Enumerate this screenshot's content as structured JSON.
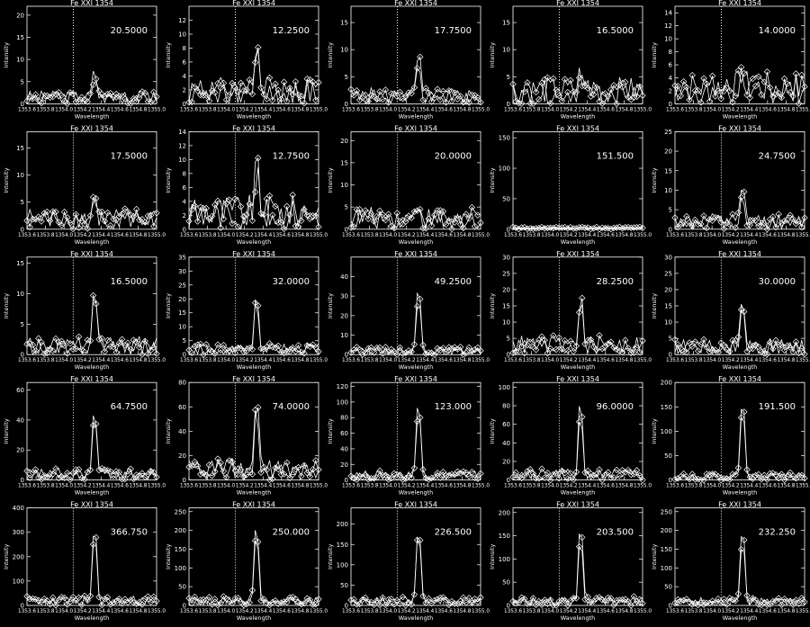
{
  "chart_data": {
    "type": "line",
    "layout": "grid 5x5",
    "panel_title": "Fe XXI 1354",
    "xlabel": "Wavelength",
    "ylabel": "Intensity",
    "xlim": [
      1353.6,
      1355.0
    ],
    "x_tick_labels": [
      "1353.6",
      "1353.8",
      "1354.0",
      "1354.2",
      "1354.4",
      "1354.6",
      "1354.8",
      "1355.0"
    ],
    "reference_line_x": 1354.1,
    "grid": false,
    "panels": [
      {
        "value_label": "20.5000",
        "ylim": [
          0,
          22
        ],
        "yticks": [
          0,
          5,
          10,
          15,
          20
        ],
        "peak": 8,
        "noise": 3
      },
      {
        "value_label": "12.2500",
        "ylim": [
          0,
          14
        ],
        "yticks": [
          0,
          2,
          4,
          6,
          8,
          10,
          12
        ],
        "peak": 10,
        "noise": 4
      },
      {
        "value_label": "17.7500",
        "ylim": [
          0,
          18
        ],
        "yticks": [
          0,
          5,
          10,
          15
        ],
        "peak": 10,
        "noise": 3
      },
      {
        "value_label": "16.5000",
        "ylim": [
          0,
          18
        ],
        "yticks": [
          0,
          5,
          10,
          15
        ],
        "peak": 6,
        "noise": 5
      },
      {
        "value_label": "14.0000",
        "ylim": [
          0,
          15
        ],
        "yticks": [
          0,
          2,
          4,
          6,
          8,
          10,
          12,
          14
        ],
        "peak": 6,
        "noise": 5
      },
      {
        "value_label": "17.5000",
        "ylim": [
          0,
          18
        ],
        "yticks": [
          0,
          5,
          10,
          15
        ],
        "peak": 6,
        "noise": 4
      },
      {
        "value_label": "12.7500",
        "ylim": [
          0,
          14
        ],
        "yticks": [
          0,
          2,
          4,
          6,
          8,
          10,
          12,
          14
        ],
        "peak": 10,
        "noise": 5
      },
      {
        "value_label": "20.0000",
        "ylim": [
          0,
          22
        ],
        "yticks": [
          0,
          5,
          10,
          15,
          20
        ],
        "peak": 7,
        "noise": 5
      },
      {
        "value_label": "151.500",
        "ylim": [
          0,
          160
        ],
        "yticks": [
          0,
          50,
          100,
          150
        ],
        "peak": 4,
        "noise": 4
      },
      {
        "value_label": "24.7500",
        "ylim": [
          0,
          25
        ],
        "yticks": [
          0,
          5,
          10,
          15,
          20,
          25
        ],
        "peak": 11,
        "noise": 4
      },
      {
        "value_label": "16.5000",
        "ylim": [
          0,
          16
        ],
        "yticks": [
          0,
          5,
          10,
          15
        ],
        "peak": 13,
        "noise": 3
      },
      {
        "value_label": "32.0000",
        "ylim": [
          0,
          35
        ],
        "yticks": [
          0,
          5,
          10,
          15,
          20,
          25,
          30,
          35
        ],
        "peak": 25,
        "noise": 4
      },
      {
        "value_label": "49.2500",
        "ylim": [
          0,
          50
        ],
        "yticks": [
          0,
          10,
          20,
          30,
          40
        ],
        "peak": 39,
        "noise": 4
      },
      {
        "value_label": "28.2500",
        "ylim": [
          0,
          30
        ],
        "yticks": [
          0,
          5,
          10,
          15,
          20,
          25,
          30
        ],
        "peak": 20,
        "noise": 6
      },
      {
        "value_label": "30.0000",
        "ylim": [
          0,
          30
        ],
        "yticks": [
          0,
          5,
          10,
          15,
          20,
          25,
          30
        ],
        "peak": 20,
        "noise": 5
      },
      {
        "value_label": "64.7500",
        "ylim": [
          0,
          65
        ],
        "yticks": [
          0,
          20,
          40,
          60
        ],
        "peak": 52,
        "noise": 8
      },
      {
        "value_label": "74.0000",
        "ylim": [
          0,
          80
        ],
        "yticks": [
          0,
          20,
          40,
          60,
          80
        ],
        "peak": 75,
        "noise": 18
      },
      {
        "value_label": "123.000",
        "ylim": [
          0,
          125
        ],
        "yticks": [
          0,
          20,
          40,
          60,
          80,
          100,
          120
        ],
        "peak": 120,
        "noise": 12
      },
      {
        "value_label": "96.0000",
        "ylim": [
          0,
          105
        ],
        "yticks": [
          0,
          20,
          40,
          60,
          80,
          100
        ],
        "peak": 98,
        "noise": 12
      },
      {
        "value_label": "191.500",
        "ylim": [
          0,
          200
        ],
        "yticks": [
          0,
          50,
          100,
          150,
          200
        ],
        "peak": 195,
        "noise": 15
      },
      {
        "value_label": "366.750",
        "ylim": [
          0,
          400
        ],
        "yticks": [
          0,
          100,
          200,
          300,
          400
        ],
        "peak": 370,
        "noise": 40
      },
      {
        "value_label": "250.000",
        "ylim": [
          0,
          260
        ],
        "yticks": [
          0,
          50,
          100,
          150,
          200,
          250
        ],
        "peak": 250,
        "noise": 25
      },
      {
        "value_label": "226.500",
        "ylim": [
          0,
          240
        ],
        "yticks": [
          0,
          50,
          100,
          150,
          200
        ],
        "peak": 228,
        "noise": 22
      },
      {
        "value_label": "203.500",
        "ylim": [
          0,
          210
        ],
        "yticks": [
          0,
          50,
          100,
          150,
          200
        ],
        "peak": 200,
        "noise": 20
      },
      {
        "value_label": "232.250",
        "ylim": [
          0,
          260
        ],
        "yticks": [
          0,
          50,
          100,
          150,
          200,
          250
        ],
        "peak": 230,
        "noise": 22
      }
    ]
  }
}
